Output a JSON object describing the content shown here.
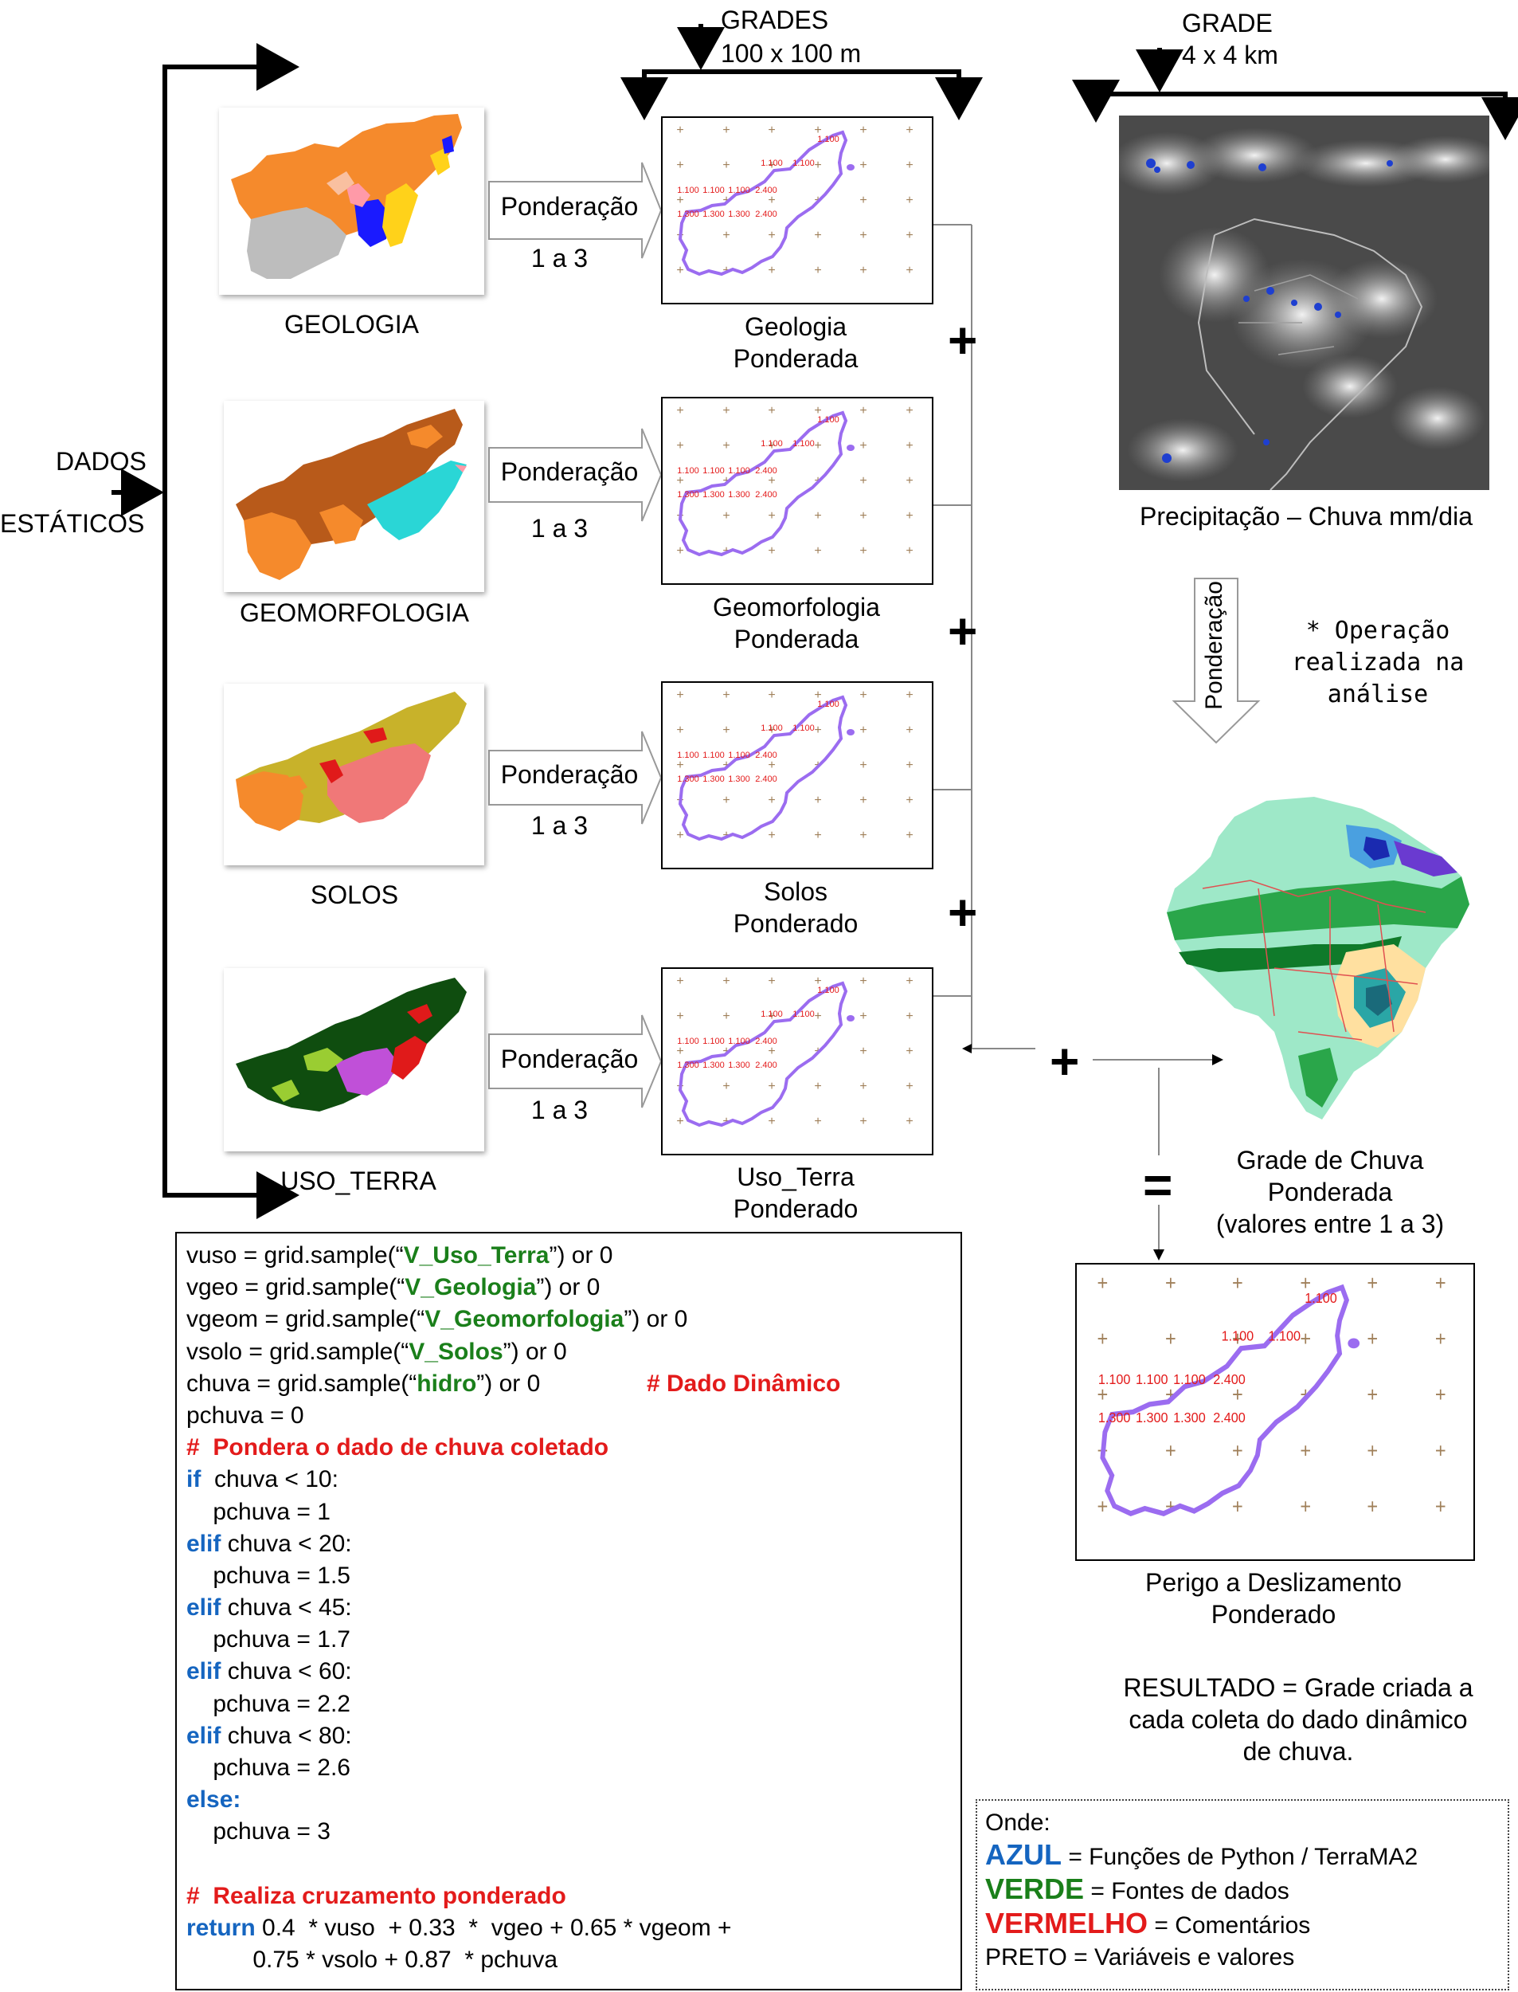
{
  "header": {
    "grades_title": "GRADES",
    "grades_res": "100 x 100 m",
    "grade_title": "GRADE",
    "grade_res": "4 x 4 km"
  },
  "dados": {
    "line1": "DADOS",
    "line2": "ESTÁTICOS"
  },
  "colors": {
    "blue": "#1565c0",
    "green": "#1a7f1a",
    "red": "#e31b1b",
    "outline": "#9b6cf0",
    "grid_label": "#e31b1b",
    "grid_plus": "#a0805a"
  },
  "rows": [
    {
      "map_label": "GEOLOGIA",
      "weight_label": "Ponderação",
      "weight_range": "1 a 3",
      "result_line1": "Geologia",
      "result_line2": "Ponderada"
    },
    {
      "map_label": "GEOMORFOLOGIA",
      "weight_label": "Ponderação",
      "weight_range": "1 a 3",
      "result_line1": "Geomorfologia",
      "result_line2": "Ponderada"
    },
    {
      "map_label": "SOLOS",
      "weight_label": "Ponderação",
      "weight_range": "1 a 3",
      "result_line1": "Solos",
      "result_line2": "Ponderado"
    },
    {
      "map_label": "USO_TERRA",
      "weight_label": "Ponderação",
      "weight_range": "1 a 3",
      "result_line1": "Uso_Terra",
      "result_line2": "Ponderado"
    }
  ],
  "grid_values": {
    "top": "1.100",
    "mid": [
      "1.100",
      "1.100"
    ],
    "row3": [
      "1.100",
      "1.100",
      "1.100",
      "2.400"
    ],
    "row4": [
      "1.300",
      "1.300",
      "1.300",
      "2.400"
    ]
  },
  "plus_symbol": "+",
  "equals_symbol": "=",
  "satellite": {
    "caption": "Precipitação – Chuva mm/dia"
  },
  "ponderacao_vertical": "Ponderação",
  "note": {
    "line1": "* Operação",
    "line2": "realizada na",
    "line3": "análise"
  },
  "rain_grid": {
    "line1": "Grade de Chuva",
    "line2": "Ponderada",
    "line3": "(valores entre 1 a 3)"
  },
  "perigo": {
    "line1": "Perigo a Deslizamento",
    "line2": "Ponderado"
  },
  "resultado": {
    "line1": "RESULTADO = Grade criada a",
    "line2": "cada coleta do dado dinâmico",
    "line3": "de chuva."
  },
  "code": {
    "l1": [
      "vuso = grid.sample(“",
      "V_Uso_Terra",
      "”) or 0"
    ],
    "l2": [
      "vgeo = grid.sample(“",
      "V_Geologia",
      "”) or 0"
    ],
    "l3": [
      "vgeom = grid.sample(“",
      "V_Geomorfologia",
      "”) or 0"
    ],
    "l4": [
      "vsolo = grid.sample(“",
      "V_Solos",
      "”) or 0"
    ],
    "l5": [
      "chuva = grid.sample(“",
      "hidro",
      "”) or 0",
      "# Dado Dinâmico"
    ],
    "l6": "pchuva = 0",
    "l7": "#  Pondera o dado de chuva coletado",
    "l8": [
      "if",
      "  chuva < 10:"
    ],
    "l9": "    pchuva = 1",
    "l10": [
      "elif",
      " chuva < 20:"
    ],
    "l11": "    pchuva = 1.5",
    "l12": [
      "elif",
      " chuva < 45:"
    ],
    "l13": "    pchuva = 1.7",
    "l14": [
      "elif",
      " chuva < 60:"
    ],
    "l15": "    pchuva = 2.2",
    "l16": [
      "elif",
      " chuva < 80:"
    ],
    "l17": "    pchuva = 2.6",
    "l18": "else:",
    "l19": "    pchuva = 3",
    "l20": "#  Realiza cruzamento ponderado",
    "l21": [
      "return",
      " 0.4  * vuso  + 0.33  *  vgeo + 0.65 * vgeom +"
    ],
    "l22": "          0.75 * vsolo + 0.87  * pchuva"
  },
  "legend": {
    "title": "Onde:",
    "blue_word": "AZUL",
    "blue_desc": " = Funções de Python / TerraMA2",
    "green_word": "VERDE",
    "green_desc": " = Fontes de dados",
    "red_word": "VERMELHO",
    "red_desc": " = Comentários",
    "black_line": "PRETO = Variáveis e valores"
  }
}
